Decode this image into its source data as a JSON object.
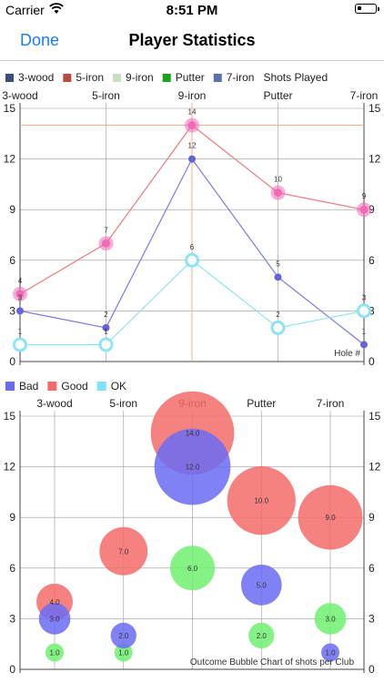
{
  "status_bar": {
    "carrier": "Carrier",
    "time": "8:51 PM"
  },
  "nav": {
    "done_label": "Done",
    "title": "Player Statistics"
  },
  "colors": {
    "accent": "#1a7cf5"
  },
  "line_chart": {
    "legend": [
      {
        "label": "3-wood",
        "color": "#3a4f7a"
      },
      {
        "label": "5-iron",
        "color": "#b94a3f"
      },
      {
        "label": "9-iron",
        "color": "#c9dfc2"
      },
      {
        "label": "Putter",
        "color": "#1aa31a"
      },
      {
        "label": "7-iron",
        "color": "#5a72a8"
      },
      {
        "label": "Shots Played",
        "color": null
      }
    ],
    "annotation": "Hole #"
  },
  "bubble_chart": {
    "legend": [
      {
        "label": "Bad",
        "color": "#6b6bef"
      },
      {
        "label": "Good",
        "color": "#f56b6b"
      },
      {
        "label": "OK",
        "color": "#7fe3f5"
      }
    ],
    "annotation": "Outcome Bubble Chart of shots per Club"
  },
  "chart_data": [
    {
      "type": "line",
      "categories": [
        "3-wood",
        "5-iron",
        "9-iron",
        "Putter",
        "7-iron"
      ],
      "ylim": [
        0,
        15
      ],
      "yticks": [
        0,
        3,
        6,
        9,
        12,
        15
      ],
      "grid": true,
      "limit_line": 14,
      "series": [
        {
          "color": "#f06ab8",
          "line": "#f07a7a",
          "marker": "filled-large",
          "values": [
            4,
            7,
            14,
            10,
            9
          ]
        },
        {
          "color": "#6464d8",
          "line": "#7a7ae6",
          "marker": "filled-small",
          "values": [
            3,
            2,
            12,
            5,
            1
          ]
        },
        {
          "color": "#8ee4f5",
          "line": "#8ee4f5",
          "marker": "hollow",
          "values": [
            1,
            1,
            6,
            2,
            3
          ]
        }
      ]
    },
    {
      "type": "bubble",
      "categories": [
        "3-wood",
        "5-iron",
        "9-iron",
        "Putter",
        "7-iron"
      ],
      "ylim": [
        0,
        15
      ],
      "yticks": [
        0,
        3,
        6,
        9,
        12,
        15
      ],
      "grid": true,
      "series": [
        {
          "name": "Good",
          "color": "#f56b6b",
          "values": [
            4,
            7,
            14,
            10,
            9
          ],
          "labels": [
            "4.0",
            "7.0",
            "14.0",
            "10.0",
            "9.0"
          ]
        },
        {
          "name": "OK",
          "color": "#6ef06e",
          "values": [
            1,
            1,
            6,
            2,
            3
          ],
          "labels": [
            "1.0",
            "1.0",
            "6.0",
            "2.0",
            "3.0"
          ]
        },
        {
          "name": "Bad",
          "color": "#6b6bf5",
          "values": [
            3,
            2,
            12,
            5,
            1
          ],
          "labels": [
            "3.0",
            "2.0",
            "12.0",
            "5.0",
            "1.0"
          ]
        }
      ]
    }
  ]
}
